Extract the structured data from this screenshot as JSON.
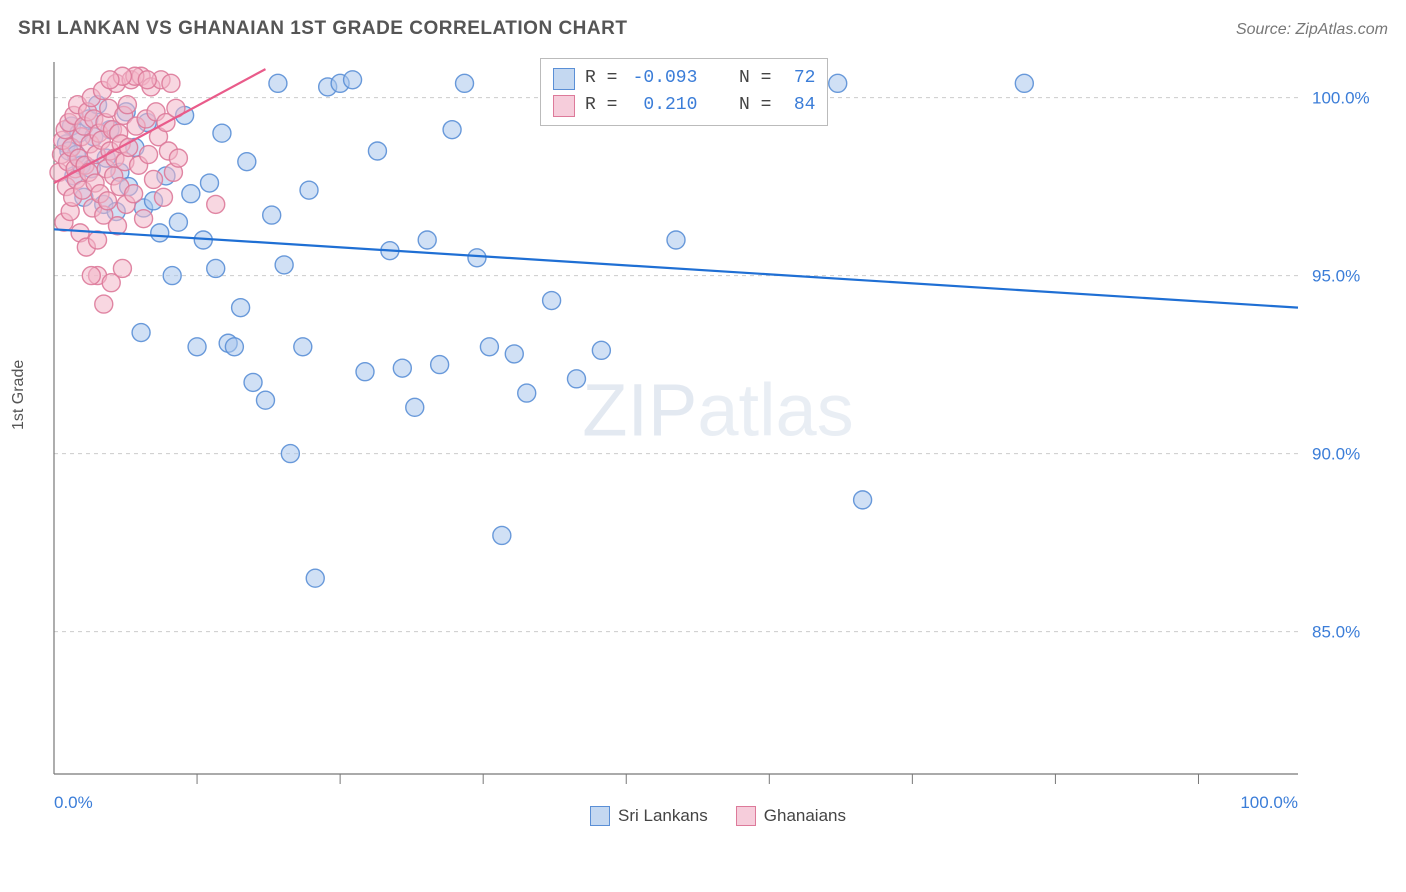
{
  "title": "SRI LANKAN VS GHANAIAN 1ST GRADE CORRELATION CHART",
  "source": "Source: ZipAtlas.com",
  "y_axis_label": "1st Grade",
  "watermark": "ZIPatlas",
  "chart": {
    "type": "scatter",
    "background_color": "#ffffff",
    "grid_color": "#cccccc",
    "axis_color": "#777777",
    "xlim": [
      0,
      100
    ],
    "ylim": [
      81,
      101
    ],
    "x_ticks_major": [
      0,
      100
    ],
    "x_ticks_minor": [
      11.5,
      23,
      34.5,
      46,
      57.5,
      69,
      80.5,
      92
    ],
    "x_tick_labels": {
      "0": "0.0%",
      "100": "100.0%"
    },
    "y_ticks": [
      85,
      90,
      95,
      100
    ],
    "y_tick_labels": {
      "85": "85.0%",
      "90": "90.0%",
      "95": "95.0%",
      "100": "100.0%"
    },
    "marker_radius": 9,
    "marker_opacity": 0.55,
    "marker_stroke_opacity": 0.9,
    "series": [
      {
        "name": "Sri Lankans",
        "color_fill": "#a9c6ec",
        "color_stroke": "#5a8fd6",
        "R": "-0.093",
        "N": "72",
        "trend": {
          "x1": 0,
          "y1": 96.3,
          "x2": 100,
          "y2": 94.1,
          "color": "#1f6fd4"
        },
        "points": [
          [
            1.0,
            98.7
          ],
          [
            1.2,
            98.5
          ],
          [
            1.4,
            99.2
          ],
          [
            1.6,
            97.8
          ],
          [
            1.8,
            98.4
          ],
          [
            2.0,
            99.0
          ],
          [
            2.2,
            98.1
          ],
          [
            2.4,
            97.2
          ],
          [
            2.8,
            99.4
          ],
          [
            3.0,
            98.0
          ],
          [
            3.2,
            98.9
          ],
          [
            3.5,
            99.8
          ],
          [
            4.0,
            97.0
          ],
          [
            4.2,
            98.3
          ],
          [
            4.5,
            99.1
          ],
          [
            5.0,
            96.8
          ],
          [
            5.3,
            97.9
          ],
          [
            5.8,
            99.6
          ],
          [
            6.0,
            97.5
          ],
          [
            6.5,
            98.6
          ],
          [
            7.0,
            93.4
          ],
          [
            7.2,
            96.9
          ],
          [
            7.5,
            99.3
          ],
          [
            8.0,
            97.1
          ],
          [
            8.5,
            96.2
          ],
          [
            9.0,
            97.8
          ],
          [
            9.5,
            95.0
          ],
          [
            10.0,
            96.5
          ],
          [
            10.5,
            99.5
          ],
          [
            11.0,
            97.3
          ],
          [
            11.5,
            93.0
          ],
          [
            12.0,
            96.0
          ],
          [
            12.5,
            97.6
          ],
          [
            13.0,
            95.2
          ],
          [
            13.5,
            99.0
          ],
          [
            14.0,
            93.1
          ],
          [
            14.5,
            93.0
          ],
          [
            15.0,
            94.1
          ],
          [
            15.5,
            98.2
          ],
          [
            16.0,
            92.0
          ],
          [
            17.0,
            91.5
          ],
          [
            17.5,
            96.7
          ],
          [
            18.0,
            100.4
          ],
          [
            18.5,
            95.3
          ],
          [
            19.0,
            90.0
          ],
          [
            20.0,
            93.0
          ],
          [
            20.5,
            97.4
          ],
          [
            21.0,
            86.5
          ],
          [
            22.0,
            100.3
          ],
          [
            23.0,
            100.4
          ],
          [
            24.0,
            100.5
          ],
          [
            25.0,
            92.3
          ],
          [
            26.0,
            98.5
          ],
          [
            27.0,
            95.7
          ],
          [
            28.0,
            92.4
          ],
          [
            29.0,
            91.3
          ],
          [
            30.0,
            96.0
          ],
          [
            31.0,
            92.5
          ],
          [
            32.0,
            99.1
          ],
          [
            33.0,
            100.4
          ],
          [
            34.0,
            95.5
          ],
          [
            35.0,
            93.0
          ],
          [
            36.0,
            87.7
          ],
          [
            37.0,
            92.8
          ],
          [
            38.0,
            91.7
          ],
          [
            40.0,
            94.3
          ],
          [
            42.0,
            92.1
          ],
          [
            44.0,
            92.9
          ],
          [
            63.0,
            100.4
          ],
          [
            65.0,
            88.7
          ],
          [
            78.0,
            100.4
          ],
          [
            50.0,
            96.0
          ]
        ]
      },
      {
        "name": "Ghanaians",
        "color_fill": "#f2b7c8",
        "color_stroke": "#dd7a9a",
        "R": "0.210",
        "N": "84",
        "trend": {
          "x1": 0,
          "y1": 97.6,
          "x2": 17,
          "y2": 100.8,
          "color": "#e95b8a"
        },
        "points": [
          [
            0.4,
            97.9
          ],
          [
            0.6,
            98.4
          ],
          [
            0.7,
            98.8
          ],
          [
            0.8,
            96.5
          ],
          [
            0.9,
            99.1
          ],
          [
            1.0,
            97.5
          ],
          [
            1.1,
            98.2
          ],
          [
            1.2,
            99.3
          ],
          [
            1.3,
            96.8
          ],
          [
            1.4,
            98.6
          ],
          [
            1.5,
            97.2
          ],
          [
            1.6,
            99.5
          ],
          [
            1.7,
            98.0
          ],
          [
            1.8,
            97.7
          ],
          [
            1.9,
            99.8
          ],
          [
            2.0,
            98.3
          ],
          [
            2.1,
            96.2
          ],
          [
            2.2,
            98.9
          ],
          [
            2.3,
            97.4
          ],
          [
            2.4,
            99.2
          ],
          [
            2.5,
            98.1
          ],
          [
            2.6,
            95.8
          ],
          [
            2.7,
            99.6
          ],
          [
            2.8,
            97.9
          ],
          [
            2.9,
            98.7
          ],
          [
            3.0,
            100.0
          ],
          [
            3.1,
            96.9
          ],
          [
            3.2,
            99.4
          ],
          [
            3.3,
            97.6
          ],
          [
            3.4,
            98.4
          ],
          [
            3.5,
            95.0
          ],
          [
            3.6,
            99.0
          ],
          [
            3.7,
            97.3
          ],
          [
            3.8,
            98.8
          ],
          [
            3.9,
            100.2
          ],
          [
            4.0,
            96.7
          ],
          [
            4.1,
            99.3
          ],
          [
            4.2,
            98.0
          ],
          [
            4.3,
            97.1
          ],
          [
            4.4,
            99.7
          ],
          [
            4.5,
            98.5
          ],
          [
            4.6,
            94.8
          ],
          [
            4.7,
            99.1
          ],
          [
            4.8,
            97.8
          ],
          [
            4.9,
            98.3
          ],
          [
            5.0,
            100.4
          ],
          [
            5.1,
            96.4
          ],
          [
            5.2,
            99.0
          ],
          [
            5.3,
            97.5
          ],
          [
            5.4,
            98.7
          ],
          [
            5.5,
            95.2
          ],
          [
            5.6,
            99.5
          ],
          [
            5.7,
            98.2
          ],
          [
            5.8,
            97.0
          ],
          [
            5.9,
            99.8
          ],
          [
            6.0,
            98.6
          ],
          [
            6.2,
            100.5
          ],
          [
            6.4,
            97.3
          ],
          [
            6.6,
            99.2
          ],
          [
            6.8,
            98.1
          ],
          [
            7.0,
            100.6
          ],
          [
            7.2,
            96.6
          ],
          [
            7.4,
            99.4
          ],
          [
            7.6,
            98.4
          ],
          [
            7.8,
            100.3
          ],
          [
            8.0,
            97.7
          ],
          [
            8.2,
            99.6
          ],
          [
            8.4,
            98.9
          ],
          [
            8.6,
            100.5
          ],
          [
            8.8,
            97.2
          ],
          [
            9.0,
            99.3
          ],
          [
            9.2,
            98.5
          ],
          [
            9.4,
            100.4
          ],
          [
            9.6,
            97.9
          ],
          [
            9.8,
            99.7
          ],
          [
            10.0,
            98.3
          ],
          [
            6.5,
            100.6
          ],
          [
            7.5,
            100.5
          ],
          [
            5.5,
            100.6
          ],
          [
            4.5,
            100.5
          ],
          [
            3.0,
            95.0
          ],
          [
            4.0,
            94.2
          ],
          [
            3.5,
            96.0
          ],
          [
            13.0,
            97.0
          ]
        ]
      }
    ]
  },
  "legend_top": {
    "rows": [
      {
        "swatch_fill": "#c4d8f1",
        "swatch_stroke": "#5a8fd6",
        "R_label": "R =",
        "R_val": "-0.093",
        "N_label": "N =",
        "N_val": "72"
      },
      {
        "swatch_fill": "#f6cddb",
        "swatch_stroke": "#dd7a9a",
        "R_label": "R =",
        "R_val": "0.210",
        "N_label": "N =",
        "N_val": "84"
      }
    ]
  },
  "legend_bottom": {
    "items": [
      {
        "label": "Sri Lankans",
        "fill": "#c4d8f1",
        "stroke": "#5a8fd6"
      },
      {
        "label": "Ghanaians",
        "fill": "#f6cddb",
        "stroke": "#dd7a9a"
      }
    ]
  }
}
